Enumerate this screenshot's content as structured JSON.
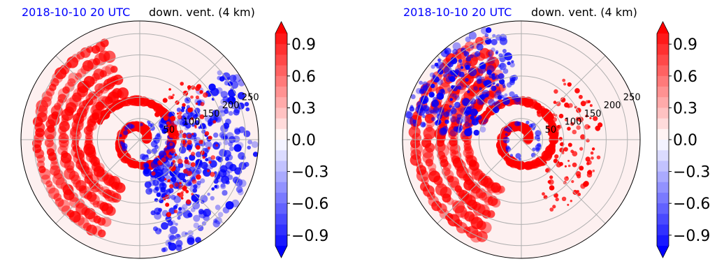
{
  "colors": {
    "strong_red": "#ff0000",
    "strong_blue": "#0000ff",
    "neutral": "#fdf0f0",
    "grid": "#b0b0b0",
    "title_blue": "#0000ff"
  },
  "chart_data": [
    {
      "type": "polar-filled-contour",
      "title_left": "2018-10-10 20 UTC",
      "title_right": "down. vent. (4 km)",
      "radial_ticks": [
        "50",
        "100",
        "150",
        "200",
        "250"
      ],
      "radial_tick_values": [
        50,
        100,
        150,
        200,
        250
      ],
      "rlim": [
        0,
        280
      ],
      "grid": true,
      "colorbar": {
        "ticks": [
          "0.9",
          "0.6",
          "0.3",
          "0.0",
          "−0.3",
          "−0.6",
          "−0.9"
        ],
        "tick_values": [
          0.9,
          0.6,
          0.3,
          0.0,
          -0.3,
          -0.6,
          -0.9
        ],
        "range": [
          -1.0,
          1.0
        ],
        "extend": "both"
      },
      "pattern": {
        "red_arcs_west": true,
        "red_spiral_core": true,
        "blue_band_east": true
      }
    },
    {
      "type": "polar-filled-contour",
      "title_left": "2018-10-10 20 UTC",
      "title_right": "down. vent. (4 km)",
      "radial_ticks": [
        "50",
        "100",
        "150",
        "200",
        "250"
      ],
      "radial_tick_values": [
        50,
        100,
        150,
        200,
        250
      ],
      "rlim": [
        0,
        280
      ],
      "grid": true,
      "colorbar": {
        "ticks": [
          "0.9",
          "0.6",
          "0.3",
          "0.0",
          "−0.3",
          "−0.6",
          "−0.9"
        ],
        "tick_values": [
          0.9,
          0.6,
          0.3,
          0.0,
          -0.3,
          -0.6,
          -0.9
        ],
        "range": [
          -1.0,
          1.0
        ],
        "extend": "both"
      },
      "pattern": {
        "red_arcs_west": true,
        "red_spiral_core": true,
        "blue_band_northwest": true
      }
    }
  ]
}
